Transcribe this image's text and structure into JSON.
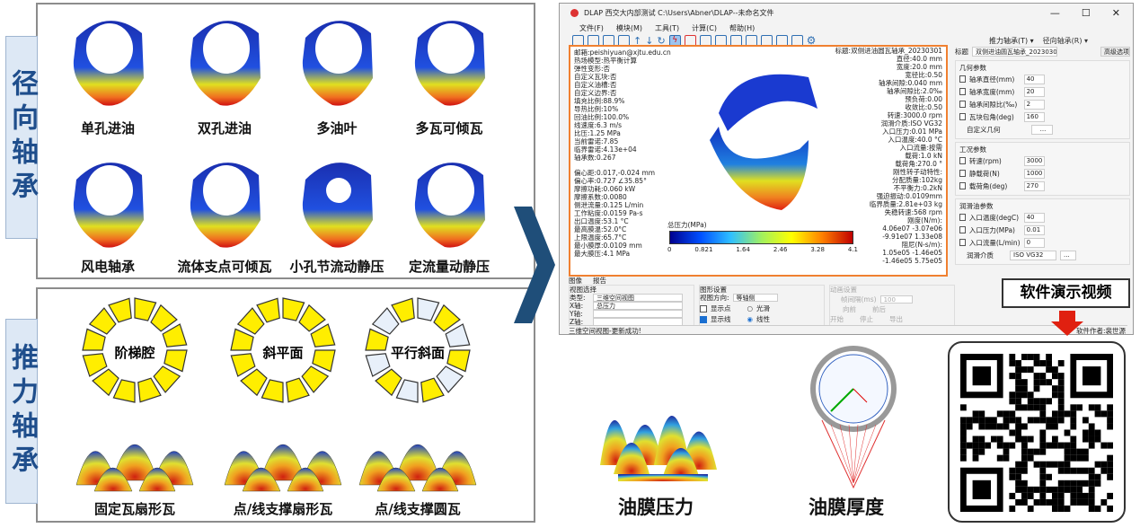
{
  "radial": {
    "title": "径向轴承",
    "items": [
      "单孔进油",
      "双孔进油",
      "多油叶",
      "多瓦可倾瓦",
      "风电轴承",
      "流体支点可倾瓦",
      "小孔节流动静压",
      "定流量动静压"
    ]
  },
  "thrust": {
    "title": "推力轴承",
    "ring_labels": [
      "阶梯腔",
      "斜平面",
      "平行斜面"
    ],
    "items": [
      "固定瓦扇形瓦",
      "点/线支撑扇形瓦",
      "点/线支撑圆瓦"
    ]
  },
  "window": {
    "title": "DLAP  西交大内部测试  C:\\Users\\Abner\\DLAP--未命名文件",
    "menu": [
      "文件(F)",
      "模块(M)",
      "工具(T)",
      "计算(C)",
      "帮助(H)"
    ],
    "toolbar_right": [
      "推力轴承(T) ▾",
      "径向轴承(R) ▾"
    ],
    "view": {
      "left": [
        "邮箱:peishiyuan@xjtu.edu.cn",
        "热场模型:热平衡计算",
        "弹性变形:否",
        "自定义瓦块:否",
        "自定义油槽:否",
        "自定义边界:否",
        "填充比例:88.9%",
        "导热比例:10%",
        "回油比例:100.0%",
        "线速度:6.3 m/s",
        "比压:1.25 MPa",
        "当前雷诺:7.85",
        "临界雷诺:4.13e+04",
        "轴承数:0.267"
      ],
      "left2": [
        "偏心距:0.017,-0.024 mm",
        "偏心率:0.727 ∠35.85°",
        "摩擦功耗:0.060 kW",
        "摩擦系数:0.0080",
        "侧泄流量:0.125 L/min",
        "工作粘度:0.0159 Pa-s",
        "出口温度:53.1 °C",
        "最高膜温:52.0°C",
        "上限温度:65.7°C",
        "最小膜厚:0.0109 mm",
        "最大膜压:4.1 MPa"
      ],
      "right": [
        "标题:双侧进油圆瓦轴承_20230301",
        "直径:40.0 mm",
        "宽度:20.0 mm",
        "宽径比:0.50",
        "轴承间隙:0.040 mm",
        "轴承间隙比:2.0‰",
        "预负荷:0.00",
        "收敛比:0.50",
        "转速:3000.0 rpm",
        "润滑介质:ISO VG32",
        "入口压力:0.01 MPa",
        "入口温度:40.0 °C",
        "入口流量:按需",
        "载荷:1.0 kN",
        "载荷角:270.0 °",
        "",
        "刚性转子动特性:",
        "分配质量:102kg",
        "不平衡力:0.2kN",
        "强迫振动:0.0109mm",
        "临界质量:2.81e+03 kg",
        "失稳转速:568 rpm",
        "刚度(N/m):",
        "4.06e07  -3.07e06",
        "-9.91e07  1.33e08",
        "阻尼(N-s/m):",
        "1.05e05  -1.46e05",
        "-1.46e05  5.75e05"
      ],
      "colorbar_title": "总压力(MPa)",
      "colorbar_ticks": [
        "0",
        "0.821",
        "1.64",
        "2.46",
        "3.28",
        "4.1"
      ]
    },
    "tabs": [
      "图像",
      "报告"
    ],
    "view_select": {
      "title": "视图选择",
      "type_label": "类型:",
      "type": "三维空间视图",
      "x_label": "X轴:",
      "x": "总压力",
      "y_label": "Y轴:",
      "z_label": "Z轴:"
    },
    "graph_settings": {
      "title": "图形设置",
      "dir_label": "视图方向:",
      "dir": "等轴侧",
      "show_points": "显示点",
      "show_lines": "显示线",
      "smooth": "光滑",
      "linear": "线性"
    },
    "anim": {
      "title": "动画设置",
      "interval_label": "帧间隔(ms)",
      "interval": "100",
      "forward": "向前",
      "backward": "前后",
      "start": "开始",
      "stop": "停止",
      "export": "导出"
    },
    "status": "三维空间视图-更新成功!",
    "author": "软件作者:裴世源",
    "params": {
      "title_label": "标题",
      "title": "双侧进油圆瓦轴承_20230301",
      "advanced": "高级选项",
      "geo_title": "几何参数",
      "geo": [
        [
          "轴承直径(mm)",
          "40"
        ],
        [
          "轴承宽度(mm)",
          "20"
        ],
        [
          "轴承间隙比(‰)",
          "2"
        ],
        [
          "瓦块包角(deg)",
          "160"
        ]
      ],
      "custom_geo": "自定义几何",
      "dots": "...",
      "work_title": "工况参数",
      "work": [
        [
          "转速(rpm)",
          "3000"
        ],
        [
          "静载荷(N)",
          "1000"
        ],
        [
          "载荷角(deg)",
          "270"
        ]
      ],
      "oil_title": "润滑油参数",
      "oil": [
        [
          "入口温度(degC)",
          "40"
        ],
        [
          "入口压力(MPa)",
          "0.01"
        ],
        [
          "入口流量(L/min)",
          "0"
        ]
      ],
      "medium_label": "润滑介质",
      "medium": "ISO VG32"
    }
  },
  "demo": {
    "video_label": "软件演示视频",
    "pressure": "油膜压力",
    "thickness": "油膜厚度"
  },
  "colors": {
    "accent": "#f08030",
    "arrow": "#1f4e79",
    "label_blue": "#1f4e8c"
  }
}
